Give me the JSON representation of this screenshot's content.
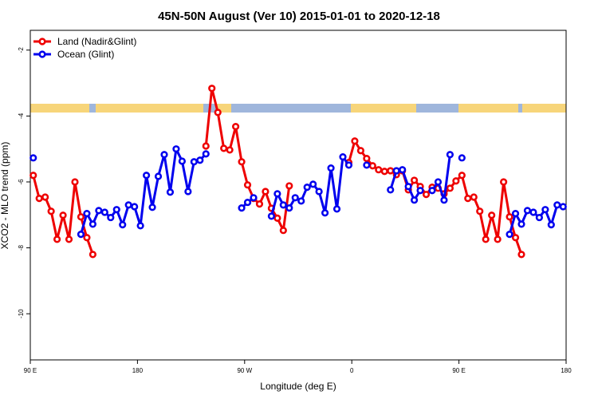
{
  "chart_data": {
    "type": "line",
    "title": "45N-50N August (Ver 10)   2015-01-01 to 2020-12-18",
    "x_label": "Longitude (deg E)",
    "y_label": "XCO2 - MLO trend (ppm)",
    "xlim": [
      90,
      540
    ],
    "xticks": [
      {
        "value": 90,
        "label": "90 E"
      },
      180,
      {
        "value": 270,
        "label": "90 W"
      },
      {
        "value": 360,
        "label": "0"
      },
      {
        "value": 450,
        "label": "90 E"
      },
      {
        "value": 540,
        "label": "180"
      }
    ],
    "ylim": [
      -11.4,
      -1.4
    ],
    "yticks": [
      -2,
      -4,
      -6,
      -8,
      -10
    ],
    "legend": "top-left",
    "x": [
      92.5,
      97.5,
      102.5,
      107.5,
      112.5,
      117.5,
      122.5,
      127.5,
      132.5,
      137.5,
      142.5,
      147.5,
      152.5,
      157.5,
      162.5,
      167.5,
      172.5,
      177.5,
      182.5,
      187.5,
      192.5,
      197.5,
      202.5,
      207.5,
      212.5,
      217.5,
      222.5,
      227.5,
      232.5,
      237.5,
      242.5,
      247.5,
      252.5,
      257.5,
      262.5,
      267.5,
      272.5,
      277.5,
      282.5,
      287.5,
      292.5,
      297.5,
      302.5,
      307.5,
      312.5,
      317.5,
      322.5,
      327.5,
      332.5,
      337.5,
      342.5,
      347.5,
      352.5,
      357.5,
      362.5,
      367.5,
      372.5,
      377.5,
      382.5,
      387.5,
      392.5,
      397.5,
      402.5,
      407.5,
      412.5,
      417.5,
      422.5,
      427.5,
      432.5,
      437.5,
      442.5,
      447.5,
      452.5,
      457.5,
      462.5,
      467.5,
      472.5,
      477.5,
      482.5,
      487.5,
      492.5,
      497.5,
      502.5,
      507.5,
      512.5,
      517.5,
      522.5,
      527.5,
      532.5,
      537.5
    ],
    "series": [
      {
        "name": "Land (Nadir&Glint)",
        "color": "#ee0000",
        "values": [
          -5.8,
          -6.5,
          -6.46,
          -6.89,
          -7.74,
          -7.01,
          -7.74,
          -6.0,
          -7.06,
          -7.69,
          -8.2,
          null,
          null,
          null,
          null,
          null,
          null,
          null,
          null,
          null,
          null,
          null,
          null,
          null,
          null,
          null,
          null,
          null,
          null,
          -4.91,
          -3.16,
          -3.89,
          -4.98,
          -5.03,
          -4.32,
          -5.39,
          -6.09,
          -6.5,
          -6.67,
          -6.29,
          -6.8,
          -7.1,
          -7.47,
          -6.12,
          null,
          null,
          null,
          null,
          null,
          null,
          null,
          null,
          null,
          -5.41,
          -4.76,
          -5.05,
          -5.29,
          -5.51,
          -5.63,
          -5.68,
          -5.66,
          -5.78,
          -5.66,
          -6.24,
          -5.95,
          -6.14,
          -6.38,
          -6.16,
          -6.19,
          -6.36,
          -6.19,
          -5.97,
          -5.8,
          -6.5,
          -6.46,
          -6.89,
          -7.74,
          -7.01,
          -7.74,
          -6.0,
          -7.06,
          -7.69,
          -8.2,
          null,
          null,
          null,
          null,
          null,
          null,
          null
        ]
      },
      {
        "name": "Ocean (Glint)",
        "color": "#0000ee",
        "values": [
          -5.27,
          null,
          null,
          null,
          null,
          null,
          null,
          null,
          -7.59,
          -6.96,
          -7.28,
          -6.87,
          -6.92,
          -7.08,
          -6.84,
          -7.3,
          -6.7,
          -6.75,
          -7.33,
          -5.8,
          -6.77,
          -5.83,
          -5.17,
          -6.31,
          -5.0,
          -5.37,
          -6.29,
          -5.39,
          -5.34,
          -5.15,
          null,
          null,
          null,
          null,
          null,
          -6.79,
          -6.62,
          -6.48,
          null,
          null,
          -7.04,
          -6.36,
          -6.7,
          -6.79,
          -6.48,
          -6.58,
          -6.16,
          -6.07,
          -6.29,
          -6.94,
          -5.58,
          -6.82,
          -5.24,
          -5.49,
          null,
          null,
          -5.49,
          null,
          null,
          null,
          -6.24,
          -5.66,
          -5.63,
          -6.14,
          -6.55,
          -6.26,
          null,
          -6.26,
          -6.0,
          -6.55,
          -5.17,
          null,
          -5.27,
          null,
          null,
          null,
          null,
          null,
          null,
          null,
          -7.59,
          -6.96,
          -7.28,
          -6.87,
          -6.92,
          -7.08,
          -6.84,
          -7.3,
          -6.7,
          -6.75
        ]
      }
    ]
  }
}
